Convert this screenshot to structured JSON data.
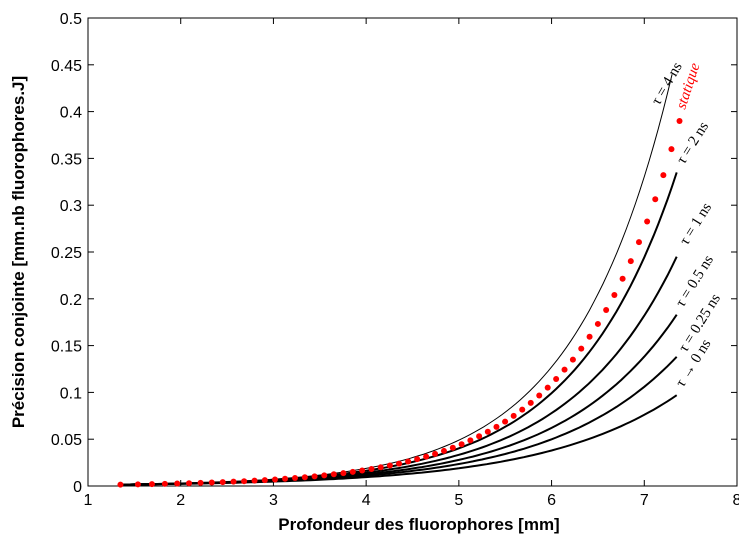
{
  "chart_data": {
    "type": "line",
    "xlabel": "Profondeur des fluorophores [mm]",
    "ylabel": "Précision conjointe [mm.nb fluorophores.J]",
    "xlim": [
      1,
      8
    ],
    "ylim": [
      0,
      0.5
    ],
    "x_ticks": [
      "1",
      "2",
      "3",
      "4",
      "5",
      "6",
      "7",
      "8"
    ],
    "y_ticks": [
      "0",
      "0.05",
      "0.1",
      "0.15",
      "0.2",
      "0.25",
      "0.3",
      "0.35",
      "0.4",
      "0.45",
      "0.5"
    ],
    "grid": false,
    "colors": {
      "lines": "#000000",
      "statique": "#ff0000"
    },
    "series": [
      {
        "name": "τ = 4 ns",
        "style": "thin",
        "x_end": 7.3,
        "y_end": 0.44
      },
      {
        "name": "τ = 2 ns",
        "style": "thick",
        "x_end": 7.35,
        "y_end": 0.335
      },
      {
        "name": "τ = 1 ns",
        "style": "thick",
        "x_end": 7.35,
        "y_end": 0.245
      },
      {
        "name": "τ = 0.5 ns",
        "style": "thick",
        "x_end": 7.35,
        "y_end": 0.183
      },
      {
        "name": "τ = 0.25 ns",
        "style": "thick",
        "x_end": 7.35,
        "y_end": 0.138
      },
      {
        "name": "τ → 0 ns",
        "style": "thick",
        "x_end": 7.35,
        "y_end": 0.097
      },
      {
        "name": "statique",
        "style": "dots",
        "x_end": 7.38,
        "y_end": 0.39
      }
    ]
  }
}
